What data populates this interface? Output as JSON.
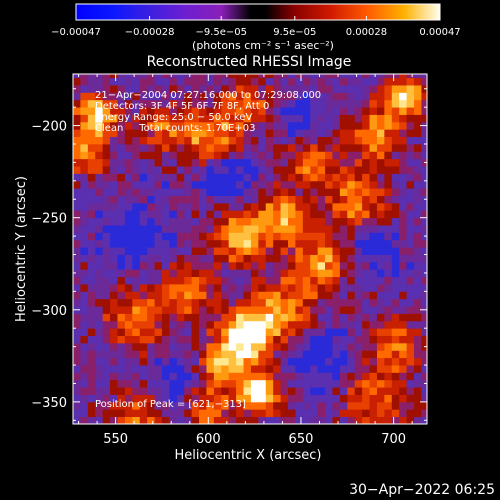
{
  "chart_data": {
    "type": "heatmap",
    "title": "Reconstructed RHESSI Image",
    "xlabel": "Heliocentric X (arcsec)",
    "ylabel": "Heliocentric Y (arcsec)",
    "xlim": [
      527,
      718
    ],
    "ylim": [
      -362,
      -172
    ],
    "x_ticks": [
      550,
      600,
      650,
      700
    ],
    "y_ticks": [
      -200,
      -250,
      -300,
      -350
    ],
    "x_tick_labels": [
      "550",
      "600",
      "650",
      "700"
    ],
    "y_tick_labels": [
      "−200",
      "−250",
      "−300",
      "−350"
    ],
    "colorbar": {
      "range": [
        -0.00047,
        0.00047
      ],
      "tick_values": [
        -0.00047,
        -0.00028,
        -9.5e-05,
        9.5e-05,
        0.00028,
        0.00047
      ],
      "tick_labels": [
        "−0.00047",
        "−0.00028",
        "−9.5e−05",
        "9.5e−05",
        "0.00028",
        "0.00047"
      ],
      "unit_label": "(photons cm⁻² s⁻¹ asec⁻²)"
    },
    "annotations": [
      "21−Apr−2004 07:27:16.000 to 07:29:08.000",
      "Detectors: 3F 4F 5F 6F 7F 8F, Att 0",
      "Energy Range: 25.0 − 50.0 keV",
      "Clean     Total counts: 1.70E+03"
    ],
    "peak_label": "Position of Peak = [621,−313]",
    "peak": [
      621,
      -313
    ],
    "colormap": "red-temperature",
    "colors": {
      "negative": "#2b1fd6",
      "zero_bg": "#4a2a8c",
      "mid": "#cc2a00",
      "high": "#ff8c00",
      "max": "#ffffff"
    }
  },
  "timestamp": "30−Apr−2022 06:25"
}
